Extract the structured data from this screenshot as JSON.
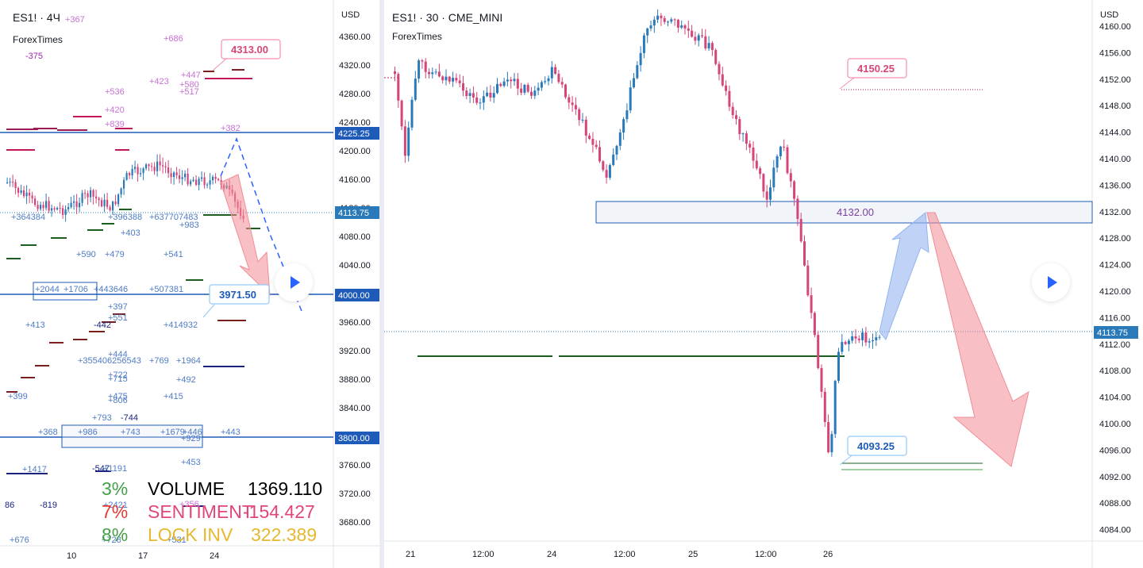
{
  "left_chart": {
    "symbol_title": "ES1! · 4Ч",
    "brand": "ForexTimes",
    "currency": "USD",
    "price_ticks": [
      "4360.00",
      "4320.00",
      "4280.00",
      "4240.00",
      "4200.00",
      "4160.00",
      "4120.00",
      "4080.00",
      "4040.00",
      "4000.00",
      "3960.00",
      "3920.00",
      "3880.00",
      "3840.00",
      "3800.00",
      "3760.00",
      "3720.00",
      "3680.00"
    ],
    "time_labels": [
      "10",
      "17",
      "24"
    ],
    "price_badges": {
      "upper_level": "4225.25",
      "last": "4113.75",
      "mid_level": "4000.00",
      "low_level": "3800.00"
    },
    "callouts": {
      "target_high": "4313.00",
      "target_low": "3971.50"
    },
    "trade_labels": [
      {
        "text": "+367",
        "c": "#c970d6"
      },
      {
        "text": "-375",
        "c": "#9c27b0"
      },
      {
        "text": "+686",
        "c": "#c970d6"
      },
      {
        "text": "+447",
        "c": "#c970d6"
      },
      {
        "text": "+580",
        "c": "#c970d6"
      },
      {
        "text": "+517",
        "c": "#c970d6"
      },
      {
        "text": "+423",
        "c": "#c970d6"
      },
      {
        "text": "+536",
        "c": "#c970d6"
      },
      {
        "text": "+420",
        "c": "#c970d6"
      },
      {
        "text": "+839",
        "c": "#c970d6"
      },
      {
        "text": "+382",
        "c": "#c970d6"
      },
      {
        "text": "+364384",
        "c": "#4f7cc6"
      },
      {
        "text": "+396388",
        "c": "#4f7cc6"
      },
      {
        "text": "+637707483",
        "c": "#4f7cc6"
      },
      {
        "text": "+983",
        "c": "#4f7cc6"
      },
      {
        "text": "+403",
        "c": "#4f7cc6"
      },
      {
        "text": "+590",
        "c": "#4f7cc6"
      },
      {
        "text": "+479",
        "c": "#4f7cc6"
      },
      {
        "text": "+541",
        "c": "#4f7cc6"
      },
      {
        "text": "+2044",
        "c": "#4f7cc6"
      },
      {
        "text": "+1706",
        "c": "#4f7cc6"
      },
      {
        "text": "+443646",
        "c": "#4f7cc6"
      },
      {
        "text": "+507381",
        "c": "#4f7cc6"
      },
      {
        "text": "+397",
        "c": "#4f7cc6"
      },
      {
        "text": "+551",
        "c": "#4f7cc6"
      },
      {
        "text": "+413",
        "c": "#4f7cc6"
      },
      {
        "text": "-442",
        "c": "#1a237e"
      },
      {
        "text": "+414932",
        "c": "#4f7cc6"
      },
      {
        "text": "+444",
        "c": "#4f7cc6"
      },
      {
        "text": "+355406256543",
        "c": "#4f7cc6"
      },
      {
        "text": "+769",
        "c": "#4f7cc6"
      },
      {
        "text": "+1964",
        "c": "#4f7cc6"
      },
      {
        "text": "+722",
        "c": "#4f7cc6"
      },
      {
        "text": "+715",
        "c": "#4f7cc6"
      },
      {
        "text": "+492",
        "c": "#4f7cc6"
      },
      {
        "text": "+399",
        "c": "#4f7cc6"
      },
      {
        "text": "+475",
        "c": "#4f7cc6"
      },
      {
        "text": "+806",
        "c": "#4f7cc6"
      },
      {
        "text": "+415",
        "c": "#4f7cc6"
      },
      {
        "text": "+793",
        "c": "#4f7cc6"
      },
      {
        "text": "-744",
        "c": "#1a237e"
      },
      {
        "text": "+368",
        "c": "#4f7cc6"
      },
      {
        "text": "+986",
        "c": "#4f7cc6"
      },
      {
        "text": "+743",
        "c": "#4f7cc6"
      },
      {
        "text": "+1679",
        "c": "#4f7cc6"
      },
      {
        "text": "+446",
        "c": "#4f7cc6"
      },
      {
        "text": "+929",
        "c": "#4f7cc6"
      },
      {
        "text": "+443",
        "c": "#4f7cc6"
      },
      {
        "text": "+453",
        "c": "#4f7cc6"
      },
      {
        "text": "+1417",
        "c": "#4f7cc6"
      },
      {
        "text": "-547",
        "c": "#1a237e"
      },
      {
        "text": "+1191",
        "c": "#4f7cc6"
      },
      {
        "text": "86",
        "c": "#1a237e"
      },
      {
        "text": "-819",
        "c": "#1a237e"
      },
      {
        "text": "+2421",
        "c": "#4f7cc6"
      },
      {
        "text": "+356",
        "c": "#c970d6"
      },
      {
        "text": "+676",
        "c": "#4f7cc6"
      },
      {
        "text": "+728",
        "c": "#4f7cc6"
      },
      {
        "text": "+531",
        "c": "#4f7cc6"
      }
    ],
    "stats": [
      {
        "pct": "3%",
        "label": "VOLUME",
        "value": "1369.110",
        "pct_color": "#43a047",
        "label_color": "#000000",
        "value_color": "#000000"
      },
      {
        "pct": "7%",
        "label": "SENTIMENT",
        "value": "-154.427",
        "pct_color": "#e53935",
        "label_color": "#e0457b",
        "value_color": "#e0457b"
      },
      {
        "pct": "8%",
        "label": "LOCK INV",
        "value": "322.389",
        "pct_color": "#43a047",
        "label_color": "#e6b830",
        "value_color": "#e6b830"
      }
    ]
  },
  "right_chart": {
    "symbol_title": "ES1! · 30 · CME_MINI",
    "brand": "ForexTimes",
    "currency": "USD",
    "price_ticks": [
      "4160.00",
      "4156.00",
      "4152.00",
      "4148.00",
      "4144.00",
      "4140.00",
      "4136.00",
      "4132.00",
      "4128.00",
      "4124.00",
      "4120.00",
      "4116.00",
      "4112.00",
      "4108.00",
      "4104.00",
      "4100.00",
      "4096.00",
      "4092.00",
      "4088.00",
      "4084.00"
    ],
    "time_labels": [
      "21",
      "12:00",
      "24",
      "12:00",
      "25",
      "12:00",
      "26"
    ],
    "last_price": "4113.75",
    "zone_label": "4132.00",
    "callouts": {
      "target_high": "4150.25",
      "target_low": "4093.25"
    }
  },
  "colors": {
    "up": "#2a7ab9",
    "down": "#d6457a",
    "accent": "#2962ff",
    "level_line": "#1e5bb8",
    "support": "#1b5e20"
  }
}
